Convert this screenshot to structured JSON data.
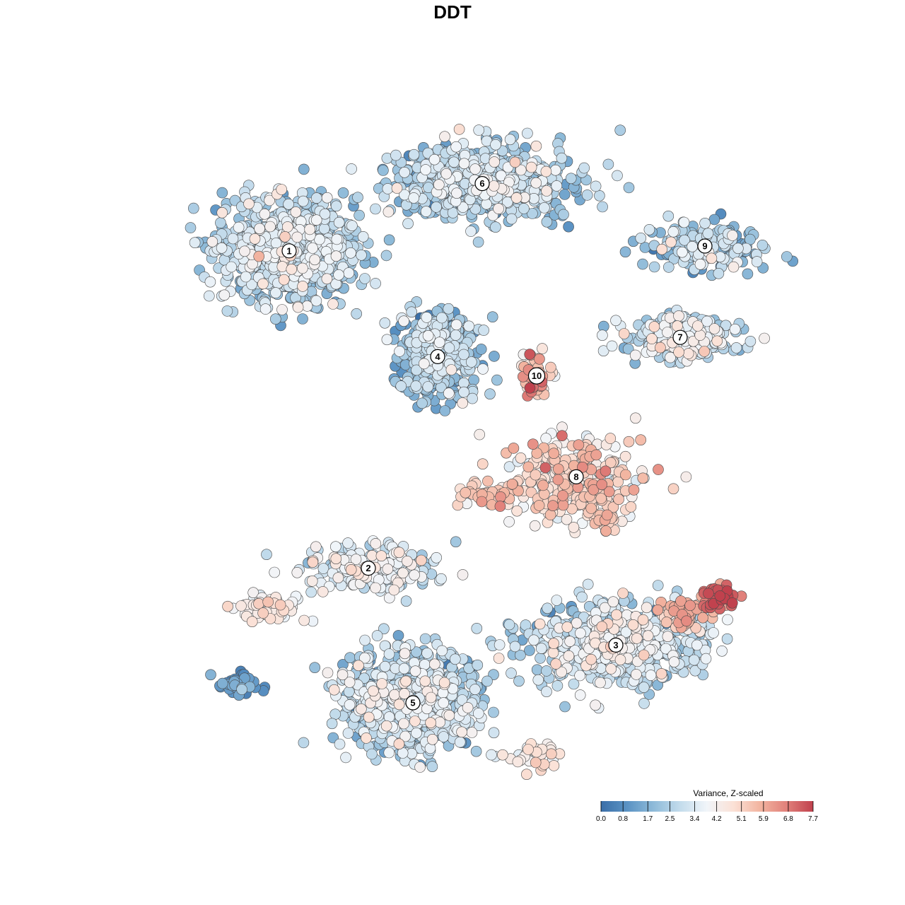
{
  "chart_data": {
    "type": "scatter",
    "title": "DDT",
    "xlabel": "",
    "ylabel": "",
    "grid": false,
    "legend_placement": "bottom-right",
    "colorbar": {
      "title": "Variance, Z-scaled",
      "min": 0.0,
      "max": 7.7,
      "ticks": [
        "0.0",
        "0.8",
        "1.7",
        "2.5",
        "3.4",
        "4.2",
        "5.1",
        "5.9",
        "6.8",
        "7.7"
      ],
      "colors": [
        "#3b6fa8",
        "#5b93c4",
        "#8fbbd9",
        "#c4dcec",
        "#f1f5f9",
        "#fbe1d6",
        "#f2b4a0",
        "#e1807a",
        "#c0414d"
      ]
    },
    "clusters": [
      {
        "label": "1",
        "x": -3.3,
        "y": 3.9,
        "value": 2.6,
        "spread_x": 1.25,
        "spread_y": 0.95,
        "count": 950
      },
      {
        "label": "2",
        "x": -1.7,
        "y": -2.7,
        "value": 3.2,
        "spread_x": 1.1,
        "spread_y": 0.45,
        "count": 250
      },
      {
        "label": "3",
        "x": 3.3,
        "y": -4.3,
        "value": 3.0,
        "spread_x": 1.55,
        "spread_y": 0.75,
        "count": 650
      },
      {
        "label": "4",
        "x": -0.3,
        "y": 1.7,
        "value": 2.1,
        "spread_x": 0.7,
        "spread_y": 0.75,
        "count": 450
      },
      {
        "label": "5",
        "x": -0.8,
        "y": -5.5,
        "value": 2.8,
        "spread_x": 1.25,
        "spread_y": 1.05,
        "count": 700
      },
      {
        "label": "6",
        "x": 0.6,
        "y": 5.3,
        "value": 2.5,
        "spread_x": 1.6,
        "spread_y": 0.7,
        "count": 650
      },
      {
        "label": "7",
        "x": 4.6,
        "y": 2.1,
        "value": 3.0,
        "spread_x": 1.05,
        "spread_y": 0.4,
        "count": 260
      },
      {
        "label": "8",
        "x": 2.5,
        "y": -0.8,
        "value": 4.8,
        "spread_x": 1.2,
        "spread_y": 0.8,
        "count": 260
      },
      {
        "label": "9",
        "x": 5.1,
        "y": 4.0,
        "value": 2.3,
        "spread_x": 1.0,
        "spread_y": 0.45,
        "count": 200
      },
      {
        "label": "10",
        "x": 1.7,
        "y": 1.3,
        "value": 5.6,
        "spread_x": 0.25,
        "spread_y": 0.35,
        "count": 60
      }
    ],
    "hotspots": [
      {
        "x": 5.4,
        "y": -3.3,
        "value": 7.2,
        "spread_x": 0.3,
        "spread_y": 0.25,
        "count": 45
      },
      {
        "x": 4.7,
        "y": -3.6,
        "value": 5.6,
        "spread_x": 0.45,
        "spread_y": 0.3,
        "count": 60
      },
      {
        "x": 0.8,
        "y": -1.2,
        "value": 5.3,
        "spread_x": 0.5,
        "spread_y": 0.25,
        "count": 50
      },
      {
        "x": 3.0,
        "y": -1.6,
        "value": 5.0,
        "spread_x": 0.4,
        "spread_y": 0.4,
        "count": 40
      },
      {
        "x": -3.7,
        "y": -3.5,
        "value": 4.2,
        "spread_x": 0.55,
        "spread_y": 0.3,
        "count": 60
      },
      {
        "x": -4.3,
        "y": -5.1,
        "value": 1.1,
        "spread_x": 0.45,
        "spread_y": 0.2,
        "count": 40
      },
      {
        "x": 1.6,
        "y": -6.6,
        "value": 4.6,
        "spread_x": 0.5,
        "spread_y": 0.3,
        "count": 30
      }
    ]
  }
}
